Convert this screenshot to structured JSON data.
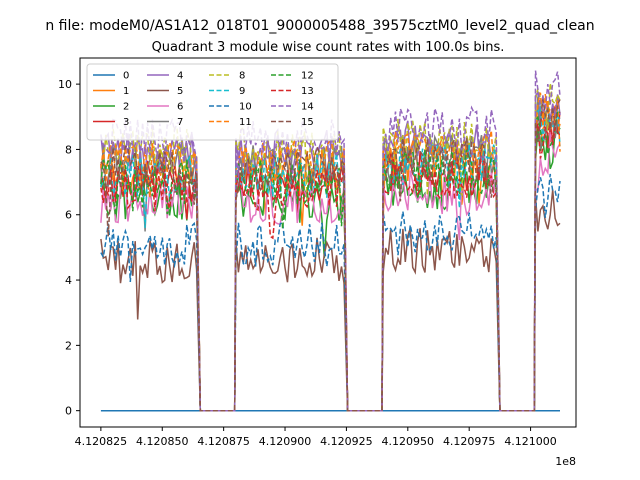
{
  "figure": {
    "suptitle": "n file: modeM0/AS1A12_018T01_9000005488_39575cztM0_level2_quad_clean",
    "title": "Quadrant 3 module wise count rates with 100.0s bins.",
    "offset_label": "1e8"
  },
  "chart_data": {
    "type": "line",
    "title": "Quadrant 3 module wise count rates with 100.0s bins.",
    "xlabel": "",
    "ylabel": "",
    "x_offset_multiplier": 100000000,
    "xlim": [
      4.1208165,
      4.1210185
    ],
    "ylim": [
      -0.5,
      10.8
    ],
    "xticks": [
      4.120825,
      4.12085,
      4.120875,
      4.1209,
      4.120925,
      4.12095,
      4.120975,
      4.121
    ],
    "xtick_labels": [
      "4.120825",
      "4.120850",
      "4.120875",
      "4.120900",
      "4.120925",
      "4.120950",
      "4.120975",
      "4.121000"
    ],
    "yticks": [
      0,
      2,
      4,
      6,
      8,
      10
    ],
    "ytick_labels": [
      "0",
      "2",
      "4",
      "6",
      "8",
      "10"
    ],
    "grid": false,
    "legend": {
      "placement": "upper-left",
      "columns": 4
    },
    "segments": [
      {
        "start": 4.120825,
        "end": 4.120864,
        "gap_end": 4.12088
      },
      {
        "start": 4.12088,
        "end": 4.120924,
        "gap_end": 4.12094
      },
      {
        "start": 4.12094,
        "end": 4.120986,
        "gap_end": 4.121002
      },
      {
        "start": 4.121002,
        "end": 4.121012,
        "gap_end": null
      }
    ],
    "bin_width": 1e-06,
    "series": [
      {
        "name": "0",
        "color": "#1f77b4",
        "dashed": false,
        "level": 0.0
      },
      {
        "name": "1",
        "color": "#ff7f0e",
        "dashed": false,
        "level": 7.3
      },
      {
        "name": "2",
        "color": "#2ca02c",
        "dashed": false,
        "level": 6.5
      },
      {
        "name": "3",
        "color": "#d62728",
        "dashed": false,
        "level": 7.1
      },
      {
        "name": "4",
        "color": "#9467bd",
        "dashed": false,
        "level": 7.9
      },
      {
        "name": "5",
        "color": "#8c564b",
        "dashed": false,
        "level": 4.6
      },
      {
        "name": "6",
        "color": "#e377c2",
        "dashed": false,
        "level": 6.4
      },
      {
        "name": "7",
        "color": "#7f7f7f",
        "dashed": false,
        "level": 7.5
      },
      {
        "name": "8",
        "color": "#bcbd22",
        "dashed": true,
        "level": 8.0
      },
      {
        "name": "9",
        "color": "#17becf",
        "dashed": true,
        "level": 7.2
      },
      {
        "name": "10",
        "color": "#1f77b4",
        "dashed": true,
        "level": 5.1
      },
      {
        "name": "11",
        "color": "#ff7f0e",
        "dashed": true,
        "level": 7.6
      },
      {
        "name": "12",
        "color": "#2ca02c",
        "dashed": true,
        "level": 7.0
      },
      {
        "name": "13",
        "color": "#d62728",
        "dashed": true,
        "level": 6.8
      },
      {
        "name": "14",
        "color": "#9467bd",
        "dashed": true,
        "level": 8.3
      },
      {
        "name": "15",
        "color": "#8c564b",
        "dashed": true,
        "level": 7.4
      }
    ]
  }
}
